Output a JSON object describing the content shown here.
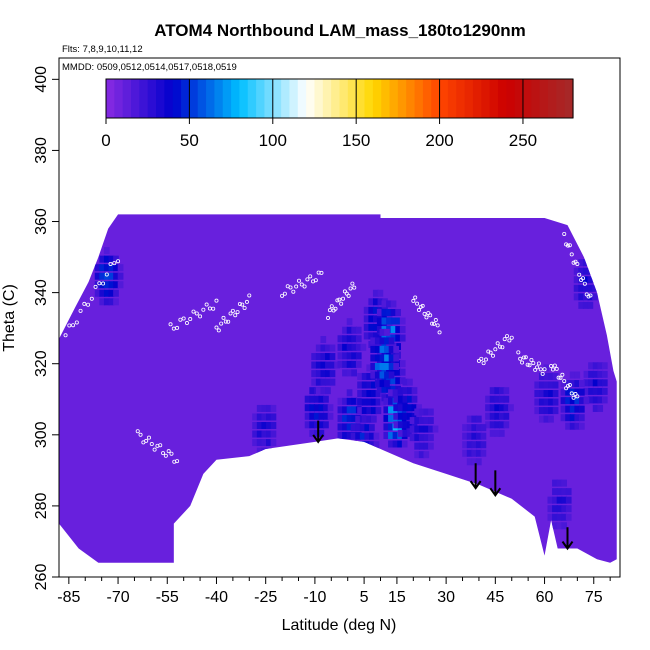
{
  "chart_data": {
    "type": "heatmap",
    "title": "ATOM4 Northbound LAM_mass_180to1290nm",
    "annotations": [
      "Flts: 7,8,9,10,11,12",
      "MMDD: 0509,0512,0514,0517,0518,0519"
    ],
    "xlabel": "Latitude (deg N)",
    "ylabel": "Theta (C)",
    "xlim": [
      -88,
      83
    ],
    "ylim": [
      260,
      406
    ],
    "x_ticks": [
      -85,
      -70,
      -55,
      -40,
      -25,
      -10,
      5,
      15,
      30,
      45,
      60,
      75
    ],
    "y_ticks": [
      260,
      280,
      300,
      320,
      340,
      360,
      380,
      400
    ],
    "grid": false,
    "colorbar": {
      "min": 0,
      "max": 280,
      "ticks": [
        0,
        50,
        100,
        150,
        200,
        250
      ],
      "colors": [
        "#8a2be2",
        "#0000cd",
        "#00bfff",
        "#ffffff",
        "#ffd700",
        "#ff4500",
        "#cc0000",
        "#a52a2a"
      ],
      "placement": "top"
    },
    "background_value": 10,
    "coverage": {
      "top": [
        [
          -88,
          327
        ],
        [
          -83,
          336
        ],
        [
          -79,
          343
        ],
        [
          -76,
          350
        ],
        [
          -73,
          358
        ],
        [
          -70,
          362
        ],
        [
          -50,
          362
        ],
        [
          10,
          362
        ],
        [
          10,
          361
        ],
        [
          60,
          361
        ],
        [
          67,
          359
        ],
        [
          72,
          350
        ],
        [
          76,
          340
        ],
        [
          79,
          328
        ],
        [
          81,
          318
        ],
        [
          82,
          315
        ]
      ],
      "bottom": [
        [
          -88,
          275
        ],
        [
          -82,
          268
        ],
        [
          -76,
          264
        ],
        [
          -66,
          264
        ],
        [
          -53,
          264
        ],
        [
          -53,
          275
        ],
        [
          -48,
          280
        ],
        [
          -44,
          289
        ],
        [
          -40,
          293
        ],
        [
          -30,
          294
        ],
        [
          -25,
          296
        ],
        [
          -10,
          298
        ],
        [
          -3,
          299
        ],
        [
          5,
          298
        ],
        [
          10,
          296
        ],
        [
          20,
          292
        ],
        [
          30,
          289
        ],
        [
          40,
          286
        ],
        [
          50,
          282
        ],
        [
          57,
          277
        ],
        [
          60,
          266
        ],
        [
          62,
          276
        ],
        [
          64,
          268
        ],
        [
          70,
          268
        ],
        [
          76,
          265
        ],
        [
          80,
          264
        ],
        [
          82,
          265
        ]
      ]
    },
    "hotspots": [
      {
        "lat": -10,
        "theta": 308,
        "value": 55
      },
      {
        "lat": -8,
        "theta": 320,
        "value": 45
      },
      {
        "lat": 0,
        "theta": 305,
        "value": 60
      },
      {
        "lat": 4,
        "theta": 300,
        "value": 50
      },
      {
        "lat": 6,
        "theta": 312,
        "value": 55
      },
      {
        "lat": 8,
        "theta": 333,
        "value": 55
      },
      {
        "lat": 12,
        "theta": 330,
        "value": 80
      },
      {
        "lat": 12,
        "theta": 318,
        "value": 65
      },
      {
        "lat": 14,
        "theta": 305,
        "value": 95
      },
      {
        "lat": 17,
        "theta": 308,
        "value": 55
      },
      {
        "lat": 22,
        "theta": 302,
        "value": 40
      },
      {
        "lat": 0,
        "theta": 325,
        "value": 45
      },
      {
        "lat": 10,
        "theta": 322,
        "value": 75
      },
      {
        "lat": -26,
        "theta": 303,
        "value": 40
      },
      {
        "lat": -74,
        "theta": 345,
        "value": 60
      },
      {
        "lat": 72,
        "theta": 344,
        "value": 45
      },
      {
        "lat": 75,
        "theta": 315,
        "value": 40
      },
      {
        "lat": 68,
        "theta": 310,
        "value": 55
      },
      {
        "lat": 45,
        "theta": 308,
        "value": 40
      },
      {
        "lat": 38,
        "theta": 300,
        "value": 35
      },
      {
        "lat": 64,
        "theta": 282,
        "value": 35
      },
      {
        "lat": 60,
        "theta": 312,
        "value": 40
      }
    ],
    "flight_tracks": [
      {
        "lat_start": -86,
        "lat_end": -70,
        "theta_start": 328,
        "theta_end": 350
      },
      {
        "lat_start": -64,
        "lat_end": -52,
        "theta_start": 300,
        "theta_end": 293
      },
      {
        "lat_start": -54,
        "lat_end": -40,
        "theta_start": 330,
        "theta_end": 337
      },
      {
        "lat_start": -40,
        "lat_end": -30,
        "theta_start": 330,
        "theta_end": 338
      },
      {
        "lat_start": -20,
        "lat_end": -8,
        "theta_start": 340,
        "theta_end": 345
      },
      {
        "lat_start": -6,
        "lat_end": 2,
        "theta_start": 334,
        "theta_end": 342
      },
      {
        "lat_start": 20,
        "lat_end": 28,
        "theta_start": 338,
        "theta_end": 330
      },
      {
        "lat_start": 40,
        "lat_end": 50,
        "theta_start": 320,
        "theta_end": 328
      },
      {
        "lat_start": 52,
        "lat_end": 60,
        "theta_start": 322,
        "theta_end": 318
      },
      {
        "lat_start": 66,
        "lat_end": 74,
        "theta_start": 356,
        "theta_end": 338
      },
      {
        "lat_start": 62,
        "lat_end": 70,
        "theta_start": 320,
        "theta_end": 310
      }
    ],
    "arrows": [
      {
        "lat": -9,
        "theta_start": 304,
        "theta_end": 298
      },
      {
        "lat": 39,
        "theta_start": 292,
        "theta_end": 285
      },
      {
        "lat": 45,
        "theta_start": 290,
        "theta_end": 283
      },
      {
        "lat": 67,
        "theta_start": 274,
        "theta_end": 268
      }
    ]
  }
}
